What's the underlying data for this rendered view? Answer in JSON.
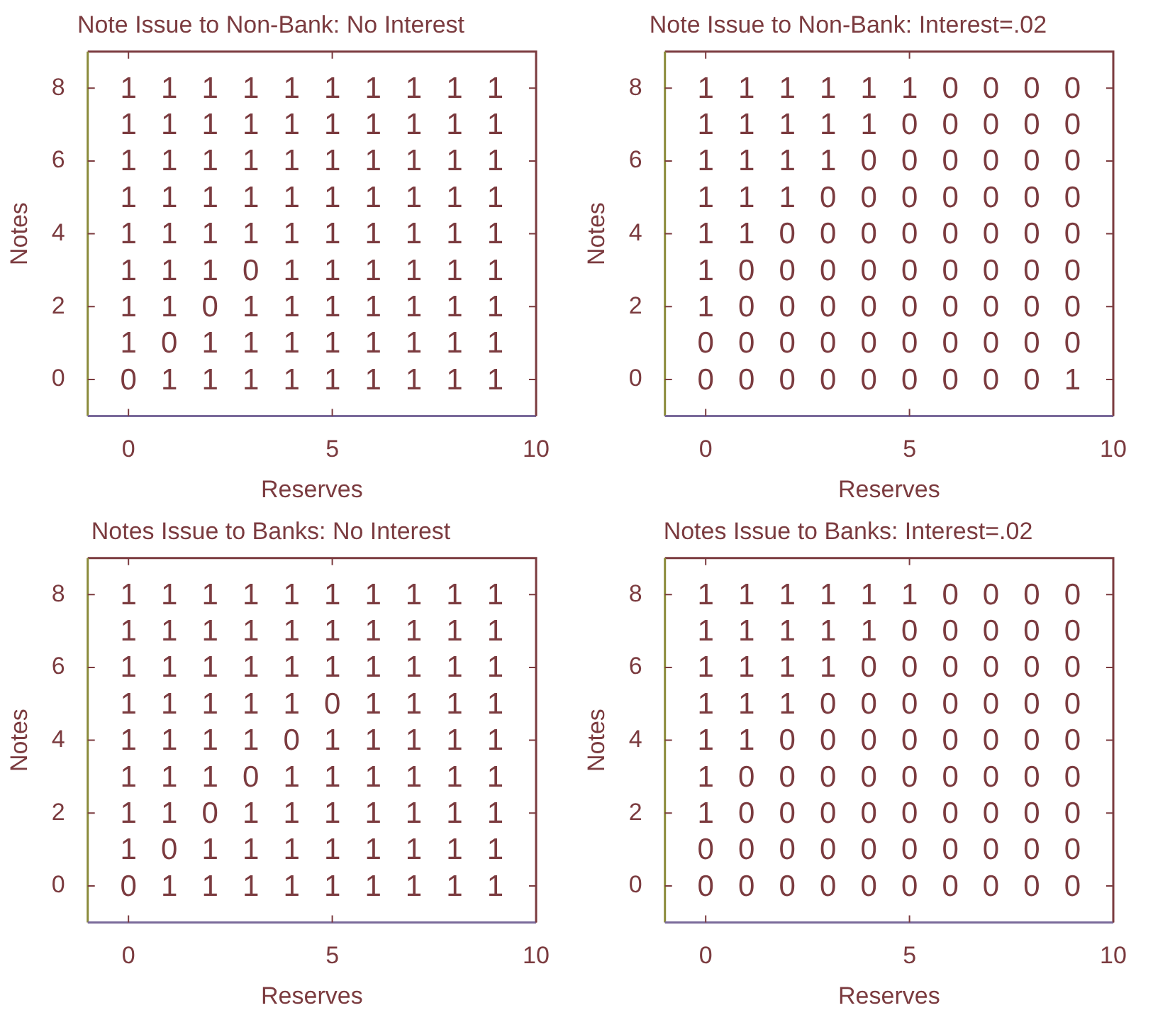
{
  "chart_data": [
    {
      "type": "heatmap",
      "title": "Note Issue to Non-Bank: No Interest",
      "xlabel": "Reserves",
      "ylabel": "Notes",
      "data_labels": true,
      "x": [
        0,
        1,
        2,
        3,
        4,
        5,
        6,
        7,
        8,
        9
      ],
      "xlim": [
        -1,
        10
      ],
      "xticks": [
        0,
        5,
        10
      ],
      "y_categories": [
        "8",
        null,
        "6",
        null,
        "4",
        null,
        "2",
        null,
        "0"
      ],
      "cells": [
        [
          1,
          1,
          1,
          1,
          1,
          1,
          1,
          1,
          1,
          1
        ],
        [
          1,
          1,
          1,
          1,
          1,
          1,
          1,
          1,
          1,
          1
        ],
        [
          1,
          1,
          1,
          1,
          1,
          1,
          1,
          1,
          1,
          1
        ],
        [
          1,
          1,
          1,
          1,
          1,
          1,
          1,
          1,
          1,
          1
        ],
        [
          1,
          1,
          1,
          1,
          1,
          1,
          1,
          1,
          1,
          1
        ],
        [
          1,
          1,
          1,
          0,
          1,
          1,
          1,
          1,
          1,
          1
        ],
        [
          1,
          1,
          0,
          1,
          1,
          1,
          1,
          1,
          1,
          1
        ],
        [
          1,
          0,
          1,
          1,
          1,
          1,
          1,
          1,
          1,
          1
        ],
        [
          0,
          1,
          1,
          1,
          1,
          1,
          1,
          1,
          1,
          1
        ]
      ]
    },
    {
      "type": "heatmap",
      "title": "Note Issue to Non-Bank: Interest=.02",
      "xlabel": "Reserves",
      "ylabel": "Notes",
      "data_labels": true,
      "x": [
        0,
        1,
        2,
        3,
        4,
        5,
        6,
        7,
        8,
        9
      ],
      "xlim": [
        -1,
        10
      ],
      "xticks": [
        0,
        5,
        10
      ],
      "y_categories": [
        "8",
        null,
        "6",
        null,
        "4",
        null,
        "2",
        null,
        "0"
      ],
      "cells": [
        [
          1,
          1,
          1,
          1,
          1,
          1,
          0,
          0,
          0,
          0
        ],
        [
          1,
          1,
          1,
          1,
          1,
          0,
          0,
          0,
          0,
          0
        ],
        [
          1,
          1,
          1,
          1,
          0,
          0,
          0,
          0,
          0,
          0
        ],
        [
          1,
          1,
          1,
          0,
          0,
          0,
          0,
          0,
          0,
          0
        ],
        [
          1,
          1,
          0,
          0,
          0,
          0,
          0,
          0,
          0,
          0
        ],
        [
          1,
          0,
          0,
          0,
          0,
          0,
          0,
          0,
          0,
          0
        ],
        [
          1,
          0,
          0,
          0,
          0,
          0,
          0,
          0,
          0,
          0
        ],
        [
          0,
          0,
          0,
          0,
          0,
          0,
          0,
          0,
          0,
          0
        ],
        [
          0,
          0,
          0,
          0,
          0,
          0,
          0,
          0,
          0,
          1
        ]
      ]
    },
    {
      "type": "heatmap",
      "title": "Notes Issue to Banks: No Interest",
      "xlabel": "Reserves",
      "ylabel": "Notes",
      "data_labels": true,
      "x": [
        0,
        1,
        2,
        3,
        4,
        5,
        6,
        7,
        8,
        9
      ],
      "xlim": [
        -1,
        10
      ],
      "xticks": [
        0,
        5,
        10
      ],
      "y_categories": [
        "8",
        null,
        "6",
        null,
        "4",
        null,
        "2",
        null,
        "0"
      ],
      "cells": [
        [
          1,
          1,
          1,
          1,
          1,
          1,
          1,
          1,
          1,
          1
        ],
        [
          1,
          1,
          1,
          1,
          1,
          1,
          1,
          1,
          1,
          1
        ],
        [
          1,
          1,
          1,
          1,
          1,
          1,
          1,
          1,
          1,
          1
        ],
        [
          1,
          1,
          1,
          1,
          1,
          0,
          1,
          1,
          1,
          1
        ],
        [
          1,
          1,
          1,
          1,
          0,
          1,
          1,
          1,
          1,
          1
        ],
        [
          1,
          1,
          1,
          0,
          1,
          1,
          1,
          1,
          1,
          1
        ],
        [
          1,
          1,
          0,
          1,
          1,
          1,
          1,
          1,
          1,
          1
        ],
        [
          1,
          0,
          1,
          1,
          1,
          1,
          1,
          1,
          1,
          1
        ],
        [
          0,
          1,
          1,
          1,
          1,
          1,
          1,
          1,
          1,
          1
        ]
      ]
    },
    {
      "type": "heatmap",
      "title": "Notes Issue to Banks: Interest=.02",
      "xlabel": "Reserves",
      "ylabel": "Notes",
      "data_labels": true,
      "x": [
        0,
        1,
        2,
        3,
        4,
        5,
        6,
        7,
        8,
        9
      ],
      "xlim": [
        -1,
        10
      ],
      "xticks": [
        0,
        5,
        10
      ],
      "y_categories": [
        "8",
        null,
        "6",
        null,
        "4",
        null,
        "2",
        null,
        "0"
      ],
      "cells": [
        [
          1,
          1,
          1,
          1,
          1,
          1,
          0,
          0,
          0,
          0
        ],
        [
          1,
          1,
          1,
          1,
          1,
          0,
          0,
          0,
          0,
          0
        ],
        [
          1,
          1,
          1,
          1,
          0,
          0,
          0,
          0,
          0,
          0
        ],
        [
          1,
          1,
          1,
          0,
          0,
          0,
          0,
          0,
          0,
          0
        ],
        [
          1,
          1,
          0,
          0,
          0,
          0,
          0,
          0,
          0,
          0
        ],
        [
          1,
          0,
          0,
          0,
          0,
          0,
          0,
          0,
          0,
          0
        ],
        [
          1,
          0,
          0,
          0,
          0,
          0,
          0,
          0,
          0,
          0
        ],
        [
          0,
          0,
          0,
          0,
          0,
          0,
          0,
          0,
          0,
          0
        ],
        [
          0,
          0,
          0,
          0,
          0,
          0,
          0,
          0,
          0,
          0
        ]
      ]
    }
  ]
}
